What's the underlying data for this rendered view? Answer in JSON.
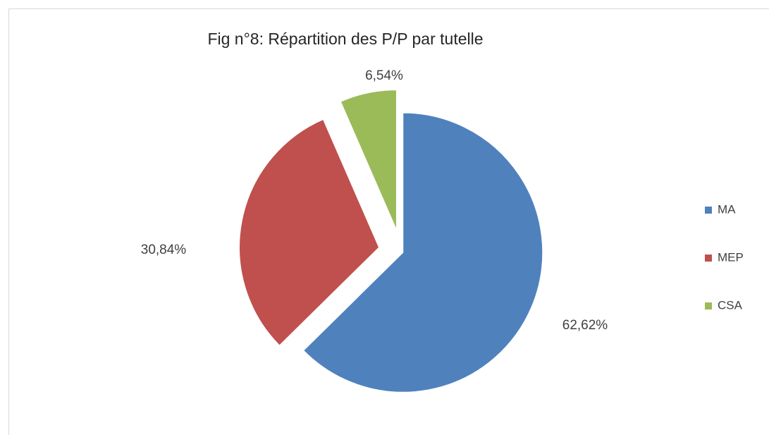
{
  "chart_data": {
    "type": "pie",
    "title": "Fig n°8: Répartition des P/P par tutelle",
    "categories": [
      "MA",
      "MEP",
      "CSA"
    ],
    "values": [
      62.62,
      30.84,
      6.54
    ],
    "value_labels": [
      "62,62%",
      "30,84%",
      "6,54%"
    ],
    "colors": [
      "#4f81bd",
      "#c0504d",
      "#9bbb59"
    ],
    "legend": "right"
  }
}
